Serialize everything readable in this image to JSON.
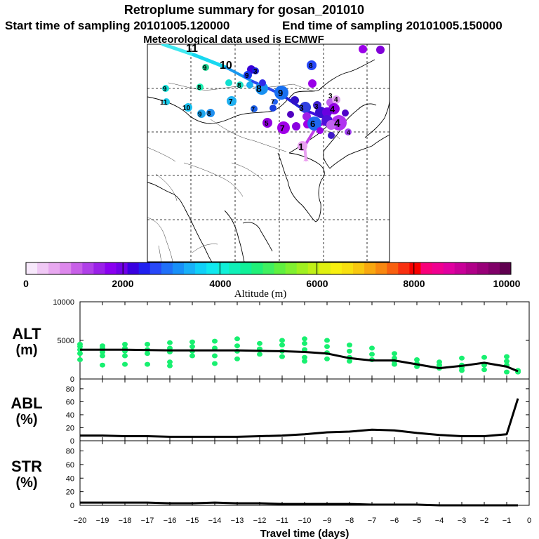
{
  "header": {
    "title": "Retroplume summary for gosan_201010",
    "start_label": "Start time of sampling 20101005.120000",
    "end_label": "End time of sampling 20101005.150000",
    "met_label": "Meteorological data used is ECMWF"
  },
  "map": {
    "labels": [
      {
        "day": 1,
        "color": "#f09cf0"
      },
      {
        "day": 2,
        "color": "#b000e0"
      },
      {
        "day": 3,
        "color": "#9000e8"
      },
      {
        "day": 4,
        "color": "#a020f0"
      },
      {
        "day": 5,
        "color": "#7f00f0"
      },
      {
        "day": 6,
        "color": "#2c54f0"
      },
      {
        "day": 7,
        "color": "#4aa3f0"
      },
      {
        "day": 8,
        "color": "#1fc8a0"
      },
      {
        "day": 9,
        "color": "#20d090"
      },
      {
        "day": 10,
        "color": "#30e0c8"
      },
      {
        "day": 11,
        "color": "#00e0e8"
      }
    ]
  },
  "colorbar": {
    "title": "Altitude (m)",
    "ticks": [
      "0",
      "2000",
      "4000",
      "6000",
      "8000",
      "10000"
    ],
    "colors": [
      "#f7e8fb",
      "#f0c8f5",
      "#e8a8f0",
      "#dd88ec",
      "#c860e8",
      "#b040e8",
      "#9a20e8",
      "#8a00f0",
      "#7000e8",
      "#3a00e0",
      "#2020f0",
      "#2848f8",
      "#2070f8",
      "#1890f8",
      "#18b0f8",
      "#10d0f8",
      "#10e8f0",
      "#10f0d8",
      "#10f0b8",
      "#10f098",
      "#20f078",
      "#40f060",
      "#60f040",
      "#80f030",
      "#a0f020",
      "#c0f018",
      "#e0f010",
      "#f8f010",
      "#f8e010",
      "#f8c810",
      "#f8a810",
      "#f88810",
      "#f86010",
      "#f83010",
      "#f80000",
      "#f8007a",
      "#f00090",
      "#e000a0",
      "#c80098",
      "#b00088",
      "#980078",
      "#800068",
      "#600050"
    ]
  },
  "chart_data": [
    {
      "type": "line",
      "panel": "ALT",
      "ylabel": [
        "ALT",
        "(m)"
      ],
      "yticks": [
        "10000",
        "5000",
        "0"
      ],
      "ylim": [
        0,
        10000
      ],
      "xlim": [
        -20,
        0
      ],
      "x": [
        -20,
        -19,
        -18,
        -17,
        -16,
        -15,
        -14,
        -13,
        -12,
        -11,
        -10,
        -9,
        -8,
        -7,
        -6,
        -5,
        -4,
        -3,
        -2,
        -1,
        -0.5
      ],
      "values": [
        3800,
        3800,
        3800,
        3750,
        3700,
        3700,
        3700,
        3700,
        3650,
        3600,
        3500,
        3300,
        2700,
        2400,
        2400,
        1900,
        1400,
        1700,
        2100,
        1600,
        1000
      ],
      "scatter_color": "#18f070",
      "scatter": [
        {
          "x": -20,
          "ys": [
            4500,
            4200,
            3800,
            3300,
            2500
          ]
        },
        {
          "x": -19,
          "ys": [
            4300,
            4000,
            3500,
            3000,
            1800
          ]
        },
        {
          "x": -18,
          "ys": [
            4500,
            4000,
            3600,
            3000,
            1900
          ]
        },
        {
          "x": -17,
          "ys": [
            4500,
            3800,
            3300,
            1900
          ]
        },
        {
          "x": -16,
          "ys": [
            4700,
            4000,
            3500,
            1700,
            2200
          ]
        },
        {
          "x": -15,
          "ys": [
            4800,
            4200,
            3600,
            3000
          ]
        },
        {
          "x": -14,
          "ys": [
            4900,
            4000,
            3000,
            2000
          ]
        },
        {
          "x": -13,
          "ys": [
            5200,
            4300,
            3600,
            2600
          ]
        },
        {
          "x": -12,
          "ys": [
            4600,
            3900,
            3200
          ]
        },
        {
          "x": -11,
          "ys": [
            5000,
            4400,
            3600,
            2900
          ]
        },
        {
          "x": -10,
          "ys": [
            5200,
            4600,
            3800,
            2800,
            2300
          ]
        },
        {
          "x": -9,
          "ys": [
            5000,
            4200,
            3400,
            2600
          ]
        },
        {
          "x": -8,
          "ys": [
            4400,
            3600,
            2800,
            2300
          ]
        },
        {
          "x": -7,
          "ys": [
            4000,
            3200,
            2500
          ]
        },
        {
          "x": -6,
          "ys": [
            3300,
            2700,
            2300,
            1900
          ]
        },
        {
          "x": -5,
          "ys": [
            2500,
            2000,
            1600
          ]
        },
        {
          "x": -4,
          "ys": [
            2200,
            1800,
            1400
          ]
        },
        {
          "x": -3,
          "ys": [
            2700,
            1800,
            1500,
            1100
          ]
        },
        {
          "x": -2,
          "ys": [
            2800,
            1800,
            1200
          ]
        },
        {
          "x": -1,
          "ys": [
            2900,
            2300,
            1800,
            900
          ]
        },
        {
          "x": -0.5,
          "ys": [
            1100,
            900
          ]
        }
      ]
    },
    {
      "type": "line",
      "panel": "ABL",
      "ylabel": [
        "ABL",
        "(%)"
      ],
      "yticks": [
        "80",
        "60",
        "40",
        "20",
        "0"
      ],
      "ylim": [
        0,
        95
      ],
      "xlim": [
        -20,
        0
      ],
      "x": [
        -20,
        -19,
        -18,
        -17,
        -16,
        -15,
        -14,
        -13,
        -12,
        -11,
        -10,
        -9,
        -8,
        -7,
        -6,
        -5,
        -4,
        -3,
        -2,
        -1,
        -0.5
      ],
      "values": [
        8,
        8,
        7,
        7,
        6,
        6,
        6,
        6,
        7,
        8,
        10,
        13,
        14,
        17,
        16,
        12,
        9,
        7,
        7,
        10,
        65
      ]
    },
    {
      "type": "line",
      "panel": "STR",
      "ylabel": [
        "STR",
        "(%)"
      ],
      "yticks": [
        "80",
        "60",
        "40",
        "20",
        "0"
      ],
      "ylim": [
        0,
        95
      ],
      "xlim": [
        -20,
        0
      ],
      "xlabel": "Travel time (days)",
      "xtick_labels": [
        "−20",
        "−19",
        "−18",
        "−17",
        "−16",
        "−15",
        "−14",
        "−13",
        "−12",
        "−11",
        "−10",
        "−9",
        "−8",
        "−7",
        "−6",
        "−5",
        "−4",
        "−3",
        "−2",
        "−1",
        "0"
      ],
      "x": [
        -20,
        -19,
        -18,
        -17,
        -16,
        -15,
        -14,
        -13,
        -12,
        -11,
        -10,
        -9,
        -8,
        -7,
        -6,
        -5,
        -4,
        -3,
        -2,
        -1,
        -0.5
      ],
      "values": [
        4,
        4,
        4,
        4,
        3,
        3,
        4,
        3,
        3,
        2,
        2,
        2,
        2,
        1,
        1,
        1,
        0,
        0,
        0,
        0,
        0
      ]
    }
  ]
}
